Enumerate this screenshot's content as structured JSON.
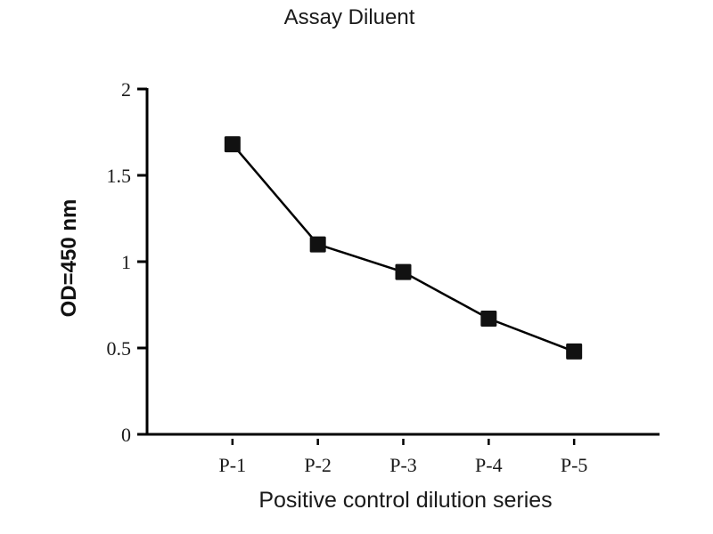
{
  "chart_data": {
    "type": "line",
    "title": "Assay Diluent",
    "categories": [
      "P-1",
      "P-2",
      "P-3",
      "P-4",
      "P-5"
    ],
    "values": [
      1.68,
      1.1,
      0.94,
      0.67,
      0.48
    ],
    "xlabel": "Positive control dilution series",
    "ylabel": "OD=450 nm",
    "ylim": [
      0,
      2
    ],
    "yticks": [
      0,
      0.5,
      1,
      1.5,
      2
    ],
    "ytick_labels": [
      "0",
      "0.5",
      "1",
      "1.5",
      "2"
    ],
    "legend": "none",
    "grid": false,
    "marker": "square",
    "line_color": "#000000",
    "marker_color": "#111111",
    "axis_color": "#000000"
  }
}
